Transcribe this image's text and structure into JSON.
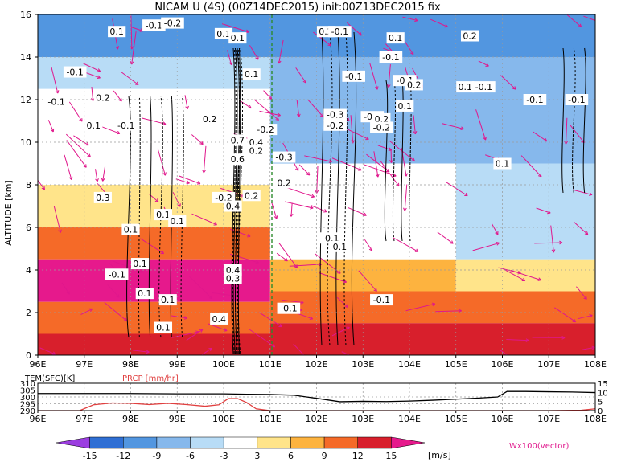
{
  "chart_data": [
    {
      "type": "heatmap",
      "title": "NICAM  U (4S) (00Z14DEC2015) init:00Z13DEC2015 fix",
      "ylabel": "ALTITUDE [km]",
      "xlim": [
        96,
        108
      ],
      "ylim": [
        0,
        16
      ],
      "x_ticks": [
        "96E",
        "97E",
        "98E",
        "99E",
        "100E",
        "101E",
        "102E",
        "103E",
        "104E",
        "105E",
        "106E",
        "107E",
        "108E"
      ],
      "y_ticks": [
        "0",
        "2",
        "4",
        "6",
        "8",
        "10",
        "12",
        "14",
        "16"
      ],
      "grid": true,
      "shaded_variable": "U wind [m/s]",
      "shaded_bands": [
        {
          "x": [
            96,
            108
          ],
          "y": [
            14.0,
            16.0
          ],
          "value": -12
        },
        {
          "x": [
            96,
            101
          ],
          "y": [
            12.5,
            14.0
          ],
          "value": -4
        },
        {
          "x": [
            101,
            108
          ],
          "y": [
            12.0,
            14.0
          ],
          "value": -7
        },
        {
          "x": [
            96,
            101
          ],
          "y": [
            10.5,
            12.5
          ],
          "value": -2
        },
        {
          "x": [
            101,
            108
          ],
          "y": [
            9.0,
            12.0
          ],
          "value": -8
        },
        {
          "x": [
            96,
            101
          ],
          "y": [
            8.0,
            10.5
          ],
          "value": 1
        },
        {
          "x": [
            101,
            105
          ],
          "y": [
            6.5,
            9.0
          ],
          "value": -3
        },
        {
          "x": [
            105,
            108
          ],
          "y": [
            4.5,
            9.0
          ],
          "value": -6
        },
        {
          "x": [
            96,
            101
          ],
          "y": [
            6.0,
            8.0
          ],
          "value": 4
        },
        {
          "x": [
            101,
            105
          ],
          "y": [
            4.5,
            6.5
          ],
          "value": 2
        },
        {
          "x": [
            96,
            101
          ],
          "y": [
            4.5,
            6.0
          ],
          "value": 10
        },
        {
          "x": [
            101,
            105
          ],
          "y": [
            3.0,
            4.5
          ],
          "value": 7
        },
        {
          "x": [
            105,
            108
          ],
          "y": [
            3.0,
            4.5
          ],
          "value": 4
        },
        {
          "x": [
            96,
            101
          ],
          "y": [
            2.5,
            4.5
          ],
          "value": 16
        },
        {
          "x": [
            101,
            108
          ],
          "y": [
            1.5,
            3.0
          ],
          "value": 9
        },
        {
          "x": [
            96,
            101
          ],
          "y": [
            1.0,
            2.5
          ],
          "value": 11
        },
        {
          "x": [
            101,
            108
          ],
          "y": [
            0.5,
            1.5
          ],
          "value": 12
        },
        {
          "x": [
            96,
            108
          ],
          "y": [
            0,
            1.0
          ],
          "value": 13
        }
      ],
      "contour_labels": [
        {
          "x": 96.4,
          "y": 11.9,
          "text": "-0.1"
        },
        {
          "x": 96.8,
          "y": 13.3,
          "text": "-0.1"
        },
        {
          "x": 97.4,
          "y": 12.1,
          "text": "0.2"
        },
        {
          "x": 97.9,
          "y": 10.8,
          "text": "-0.1"
        },
        {
          "x": 97.2,
          "y": 10.8,
          "text": "0.1"
        },
        {
          "x": 97.7,
          "y": 15.2,
          "text": "0.1"
        },
        {
          "x": 98.5,
          "y": 15.5,
          "text": "-0.1"
        },
        {
          "x": 98.9,
          "y": 15.6,
          "text": "-0.2"
        },
        {
          "x": 97.4,
          "y": 7.4,
          "text": "0.3"
        },
        {
          "x": 98.7,
          "y": 6.6,
          "text": "0.1"
        },
        {
          "x": 99.0,
          "y": 6.3,
          "text": "0.1"
        },
        {
          "x": 98.0,
          "y": 5.9,
          "text": "0.1"
        },
        {
          "x": 98.2,
          "y": 4.3,
          "text": "0.1"
        },
        {
          "x": 97.7,
          "y": 3.8,
          "text": "-0.1"
        },
        {
          "x": 98.3,
          "y": 2.9,
          "text": "0.1"
        },
        {
          "x": 98.8,
          "y": 2.6,
          "text": "0.1"
        },
        {
          "x": 98.7,
          "y": 1.3,
          "text": "0.1"
        },
        {
          "x": 100.0,
          "y": 15.1,
          "text": "0.1"
        },
        {
          "x": 100.3,
          "y": 14.9,
          "text": "0.1"
        },
        {
          "x": 100.6,
          "y": 13.2,
          "text": "0.1"
        },
        {
          "x": 99.7,
          "y": 11.1,
          "text": "0.2"
        },
        {
          "x": 100.3,
          "y": 10.1,
          "text": "0.7"
        },
        {
          "x": 100.3,
          "y": 9.2,
          "text": "0.6"
        },
        {
          "x": 100.7,
          "y": 10.0,
          "text": "0.4"
        },
        {
          "x": 100.7,
          "y": 9.6,
          "text": "0.2"
        },
        {
          "x": 100.9,
          "y": 10.6,
          "text": "-0.2"
        },
        {
          "x": 100.0,
          "y": 7.4,
          "text": "-0.2"
        },
        {
          "x": 100.2,
          "y": 7.0,
          "text": "0.4"
        },
        {
          "x": 100.6,
          "y": 7.5,
          "text": "0.2"
        },
        {
          "x": 101.3,
          "y": 8.1,
          "text": "0.2"
        },
        {
          "x": 101.3,
          "y": 9.3,
          "text": "-0.3"
        },
        {
          "x": 100.2,
          "y": 4.0,
          "text": "0.4"
        },
        {
          "x": 100.2,
          "y": 3.6,
          "text": "0.3"
        },
        {
          "x": 99.9,
          "y": 1.7,
          "text": "0.4"
        },
        {
          "x": 101.4,
          "y": 2.2,
          "text": "-0.1"
        },
        {
          "x": 102.2,
          "y": 15.2,
          "text": "0.2"
        },
        {
          "x": 102.5,
          "y": 15.2,
          "text": "-0.1"
        },
        {
          "x": 102.4,
          "y": 11.3,
          "text": "-0.3"
        },
        {
          "x": 102.4,
          "y": 10.8,
          "text": "-0.2"
        },
        {
          "x": 102.8,
          "y": 13.1,
          "text": "-0.1"
        },
        {
          "x": 103.2,
          "y": 11.2,
          "text": "-0.2"
        },
        {
          "x": 103.4,
          "y": 11.1,
          "text": "0.2"
        },
        {
          "x": 103.4,
          "y": 10.7,
          "text": "-0.2"
        },
        {
          "x": 103.7,
          "y": 14.9,
          "text": "0.1"
        },
        {
          "x": 103.6,
          "y": 14.0,
          "text": "-0.1"
        },
        {
          "x": 103.9,
          "y": 11.7,
          "text": "0.1"
        },
        {
          "x": 103.9,
          "y": 12.9,
          "text": "-0.1"
        },
        {
          "x": 104.1,
          "y": 12.7,
          "text": "0.2"
        },
        {
          "x": 105.3,
          "y": 15.0,
          "text": "0.2"
        },
        {
          "x": 105.2,
          "y": 12.6,
          "text": "0.1"
        },
        {
          "x": 105.6,
          "y": 12.6,
          "text": "-0.1"
        },
        {
          "x": 106.7,
          "y": 12.0,
          "text": "-0.1"
        },
        {
          "x": 107.6,
          "y": 12.0,
          "text": "-0.1"
        },
        {
          "x": 106.0,
          "y": 9.0,
          "text": "0.1"
        },
        {
          "x": 102.3,
          "y": 5.5,
          "text": "-0.1"
        },
        {
          "x": 102.5,
          "y": 5.1,
          "text": "0.1"
        },
        {
          "x": 103.4,
          "y": 2.6,
          "text": "-0.1"
        }
      ]
    },
    {
      "type": "line",
      "ylabel_left": "TEM(SFC)[K]",
      "ylabel_right": "PRCP [mm/hr]",
      "xlim": [
        96,
        108
      ],
      "ylim_left": [
        290,
        310
      ],
      "ylim_right": [
        0,
        15
      ],
      "left_ticks": [
        "310",
        "305",
        "300",
        "295",
        "290"
      ],
      "right_ticks": [
        "15",
        "10",
        "5",
        "0"
      ],
      "x_ticks": [
        "96E",
        "97E",
        "98E",
        "99E",
        "100E",
        "101E",
        "102E",
        "103E",
        "104E",
        "105E",
        "106E",
        "107E",
        "108E"
      ],
      "series": [
        {
          "name": "TEM(SFC)[K]",
          "color": "#000000",
          "axis": "left",
          "x": [
            96,
            97,
            98,
            99,
            100,
            100.5,
            101,
            101.5,
            102,
            102.5,
            103,
            103.5,
            104,
            104.5,
            105,
            105.5,
            105.9,
            106.1,
            106.5,
            107,
            107.5,
            108
          ],
          "y": [
            302.5,
            302.5,
            302.5,
            302.3,
            302.3,
            302,
            301.8,
            301.3,
            299,
            296.5,
            296.8,
            296.6,
            297.0,
            297.6,
            298.4,
            299.2,
            300.0,
            304.0,
            304.0,
            303.8,
            303.6,
            303.2
          ]
        },
        {
          "name": "PRCP [mm/hr]",
          "color": "#e04040",
          "axis": "right",
          "x": [
            96,
            96.9,
            97.2,
            97.6,
            98,
            98.4,
            98.8,
            99.2,
            99.6,
            99.9,
            100.1,
            100.3,
            100.5,
            100.7,
            101,
            102,
            103,
            104,
            105,
            106,
            107,
            107.7,
            108
          ],
          "y": [
            0,
            0,
            3.2,
            4.2,
            4.0,
            3.3,
            4.0,
            3.3,
            2.4,
            3.2,
            6.6,
            6.6,
            4.4,
            1.0,
            0,
            0,
            0,
            0,
            0,
            0,
            0,
            0.2,
            1.0
          ]
        }
      ]
    }
  ],
  "colorbar": {
    "ticks": [
      "-15",
      "-12",
      "-9",
      "-6",
      "-3",
      "3",
      "6",
      "9",
      "12",
      "15"
    ],
    "unit": "[m/s]",
    "colors": [
      "#9b3de0",
      "#2f6fd4",
      "#5296e0",
      "#86b8ec",
      "#b8dcf6",
      "#ffffff",
      "#ffe48a",
      "#fdb33f",
      "#f56a28",
      "#d81f2c",
      "#e6198c"
    ]
  },
  "vector_label": "Wx100(vector)",
  "colors": {
    "vector": "#e0178c",
    "contour": "#000000",
    "marker_line": "#2e8b2e"
  }
}
